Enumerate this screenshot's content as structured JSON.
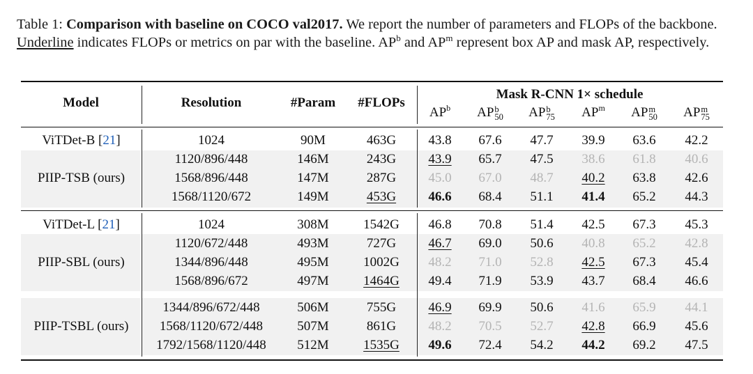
{
  "caption": {
    "label": "Table 1:",
    "title": "Comparison with baseline on COCO val2017.",
    "text1": "We report the number of parameters and FLOPs of the backbone.",
    "underline_word": "Underline",
    "text2": "indicates FLOPs or metrics on par with the baseline.",
    "ap_box": "AP",
    "ap_box_sup": "b",
    "and": "and",
    "ap_mask": "AP",
    "ap_mask_sup": "m",
    "text3": "represent box AP and mask AP, respectively."
  },
  "table": {
    "headers": {
      "model": "Model",
      "resolution": "Resolution",
      "param": "#Param",
      "flops": "#FLOPs",
      "group": "Mask R-CNN 1× schedule",
      "metrics": [
        {
          "base": "AP",
          "sup": "b",
          "sub": ""
        },
        {
          "base": "AP",
          "sup": "b",
          "sub": "50"
        },
        {
          "base": "AP",
          "sup": "b",
          "sub": "75"
        },
        {
          "base": "AP",
          "sup": "m",
          "sub": ""
        },
        {
          "base": "AP",
          "sup": "m",
          "sub": "50"
        },
        {
          "base": "AP",
          "sup": "m",
          "sub": "75"
        }
      ]
    },
    "groups": [
      {
        "baseline": {
          "name": "ViTDet-B [",
          "cite": "21",
          "close": "]",
          "resolution": "1024",
          "param": "90M",
          "flops": "463G",
          "metrics": [
            "43.8",
            "67.6",
            "47.7",
            "39.9",
            "63.6",
            "42.2"
          ]
        },
        "model": "PIIP-TSB (ours)",
        "rows": [
          {
            "resolution": "1120/896/448",
            "param": "146M",
            "flops": "243G",
            "flops_style": "",
            "metrics": [
              "43.9",
              "65.7",
              "47.5",
              "38.6",
              "61.8",
              "40.6"
            ],
            "styles": [
              "under",
              "",
              "",
              "faded",
              "faded",
              "faded"
            ]
          },
          {
            "resolution": "1568/896/448",
            "param": "147M",
            "flops": "287G",
            "flops_style": "",
            "metrics": [
              "45.0",
              "67.0",
              "48.7",
              "40.2",
              "63.8",
              "42.6"
            ],
            "styles": [
              "faded",
              "faded",
              "faded",
              "under",
              "",
              ""
            ]
          },
          {
            "resolution": "1568/1120/672",
            "param": "149M",
            "flops": "453G",
            "flops_style": "under",
            "metrics": [
              "46.6",
              "68.4",
              "51.1",
              "41.4",
              "65.2",
              "44.3"
            ],
            "styles": [
              "bold",
              "",
              "",
              "bold",
              "",
              ""
            ]
          }
        ]
      },
      {
        "baseline": {
          "name": "ViTDet-L [",
          "cite": "21",
          "close": "]",
          "resolution": "1024",
          "param": "308M",
          "flops": "1542G",
          "metrics": [
            "46.8",
            "70.8",
            "51.4",
            "42.5",
            "67.3",
            "45.3"
          ]
        },
        "model": "PIIP-SBL (ours)",
        "rows": [
          {
            "resolution": "1120/672/448",
            "param": "493M",
            "flops": "727G",
            "flops_style": "",
            "metrics": [
              "46.7",
              "69.0",
              "50.6",
              "40.8",
              "65.2",
              "42.8"
            ],
            "styles": [
              "under",
              "",
              "",
              "faded",
              "faded",
              "faded"
            ]
          },
          {
            "resolution": "1344/896/448",
            "param": "495M",
            "flops": "1002G",
            "flops_style": "",
            "metrics": [
              "48.2",
              "71.0",
              "52.8",
              "42.5",
              "67.3",
              "45.4"
            ],
            "styles": [
              "faded",
              "faded",
              "faded",
              "under",
              "",
              ""
            ]
          },
          {
            "resolution": "1568/896/672",
            "param": "497M",
            "flops": "1464G",
            "flops_style": "under",
            "metrics": [
              "49.4",
              "71.9",
              "53.9",
              "43.7",
              "68.4",
              "46.6"
            ],
            "styles": [
              "",
              "",
              "",
              "",
              "",
              ""
            ]
          }
        ]
      },
      {
        "model": "PIIP-TSBL (ours)",
        "rows": [
          {
            "resolution": "1344/896/672/448",
            "param": "506M",
            "flops": "755G",
            "flops_style": "",
            "metrics": [
              "46.9",
              "69.9",
              "50.6",
              "41.6",
              "65.9",
              "44.1"
            ],
            "styles": [
              "under",
              "",
              "",
              "faded",
              "faded",
              "faded"
            ]
          },
          {
            "resolution": "1568/1120/672/448",
            "param": "507M",
            "flops": "861G",
            "flops_style": "",
            "metrics": [
              "48.2",
              "70.5",
              "52.7",
              "42.8",
              "66.9",
              "45.6"
            ],
            "styles": [
              "faded",
              "faded",
              "faded",
              "under",
              "",
              ""
            ]
          },
          {
            "resolution": "1792/1568/1120/448",
            "param": "512M",
            "flops": "1535G",
            "flops_style": "under",
            "metrics": [
              "49.6",
              "72.4",
              "54.2",
              "44.2",
              "69.2",
              "47.5"
            ],
            "styles": [
              "bold",
              "",
              "",
              "bold",
              "",
              ""
            ]
          }
        ]
      }
    ]
  }
}
